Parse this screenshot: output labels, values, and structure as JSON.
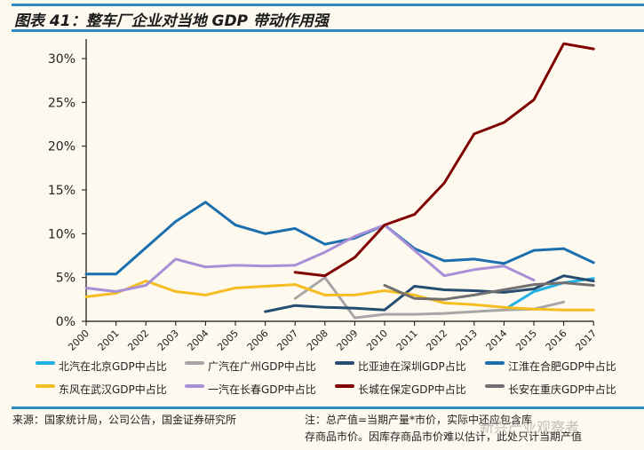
{
  "header": {
    "title": "图表 41：整车厂企业对当地 GDP 带动作用强"
  },
  "footer": {
    "source": "来源：国家统计局，公司公告，国金证券研究所",
    "note_line1": "注：总产值=当期产量*市价，实际中还应包含库",
    "note_line2": "存商品市价。因库存商品市价难以估计，此处只计当期产值",
    "watermark": "新兴产业观察者"
  },
  "chart_data": {
    "type": "line",
    "title": "整车厂企业对当地 GDP 带动作用强",
    "xlabel": "",
    "ylabel": "",
    "x": [
      "2000",
      "2001",
      "2002",
      "2003",
      "2004",
      "2005",
      "2006",
      "2007",
      "2008",
      "2009",
      "2010",
      "2011",
      "2012",
      "2013",
      "2014",
      "2015",
      "2016",
      "2017"
    ],
    "ylim": [
      0,
      30
    ],
    "yticks": [
      "0%",
      "5%",
      "10%",
      "15%",
      "20%",
      "25%",
      "30%"
    ],
    "ytick_values": [
      0,
      5,
      10,
      15,
      20,
      25,
      30
    ],
    "grid": false,
    "legend_position": "bottom",
    "series": [
      {
        "name": "北汽在北京GDP中占比",
        "color": "#1fb0e6",
        "start": "2014",
        "values": [
          1.3,
          3.4,
          4.4,
          4.9
        ]
      },
      {
        "name": "广汽在广州GDP中占比",
        "color": "#a6a6a6",
        "start": "2007",
        "values": [
          2.6,
          5.0,
          0.4,
          0.8,
          0.8,
          0.9,
          1.1,
          1.3,
          1.4,
          2.2
        ]
      },
      {
        "name": "比亚迪在深圳GDP占比",
        "color": "#254d72",
        "start": "2006",
        "values": [
          1.1,
          1.8,
          1.6,
          1.5,
          1.3,
          4.0,
          3.6,
          3.5,
          3.3,
          3.7,
          5.2,
          4.6
        ]
      },
      {
        "name": "江淮在合肥GDP中占比",
        "color": "#1b6fae",
        "start": "2000",
        "values": [
          5.4,
          5.4,
          8.4,
          11.4,
          13.6,
          11.0,
          10.0,
          10.6,
          8.8,
          9.5,
          11.0,
          8.3,
          6.9,
          7.1,
          6.6,
          8.1,
          8.3,
          6.7
        ]
      },
      {
        "name": "东风在武汉GDP中占比",
        "color": "#f5bd1f",
        "start": "2000",
        "values": [
          2.8,
          3.2,
          4.6,
          3.4,
          3.0,
          3.8,
          4.0,
          4.2,
          3.0,
          3.0,
          3.5,
          3.0,
          2.1,
          1.9,
          1.6,
          1.4,
          1.3,
          1.3
        ]
      },
      {
        "name": "一汽在长春GDP中占比",
        "color": "#a98fd8",
        "start": "2000",
        "values": [
          3.8,
          3.4,
          4.1,
          7.1,
          6.2,
          6.4,
          6.3,
          6.4,
          7.9,
          9.7,
          11.0,
          8.1,
          5.2,
          5.9,
          6.3,
          4.7
        ]
      },
      {
        "name": "长城在保定GDP中占比",
        "color": "#800000",
        "start": "2007",
        "values": [
          5.6,
          5.2,
          7.3,
          11.0,
          12.2,
          15.8,
          21.4,
          22.7,
          25.3,
          31.7,
          31.1
        ]
      },
      {
        "name": "长安在重庆GDP中占比",
        "color": "#707070",
        "start": "2010",
        "values": [
          4.1,
          2.6,
          2.5,
          3.0,
          3.6,
          4.2,
          4.4,
          4.1
        ]
      }
    ]
  }
}
